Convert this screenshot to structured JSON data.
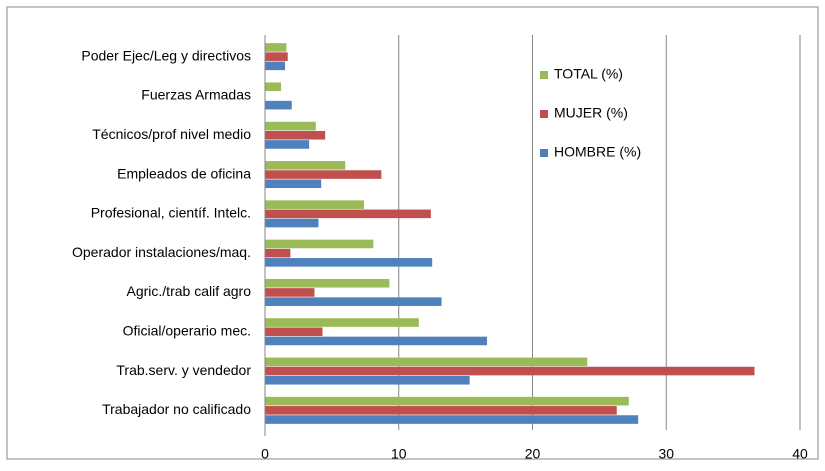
{
  "chart_data": {
    "type": "hbar",
    "categories": [
      "Poder Ejec/Leg y directivos",
      "Fuerzas Armadas",
      "Técnicos/prof nivel medio",
      "Empleados de oficina",
      "Profesional, científ. Intelc.",
      "Operador instalaciones/maq.",
      "Agric./trab calif agro",
      "Oficial/operario mec.",
      "Trab.serv. y vendedor",
      "Trabajador no calificado"
    ],
    "series": [
      {
        "name": "TOTAL (%)",
        "color": "#9bbb59",
        "values": [
          1.6,
          1.2,
          3.8,
          6.0,
          7.4,
          8.1,
          9.3,
          11.5,
          24.1,
          27.2
        ]
      },
      {
        "name": "MUJER (%)",
        "color": "#c0504d",
        "values": [
          1.7,
          0,
          4.5,
          8.7,
          12.4,
          1.9,
          3.7,
          4.3,
          36.6,
          26.3
        ]
      },
      {
        "name": "HOMBRE (%)",
        "color": "#4f81bd",
        "values": [
          1.5,
          2.0,
          3.3,
          4.2,
          4.0,
          12.5,
          13.2,
          16.6,
          15.3,
          27.9
        ]
      }
    ],
    "xlim": [
      0,
      40
    ],
    "xticks": [
      0,
      10,
      20,
      30,
      40
    ],
    "grid": true,
    "legend": "upper-right"
  }
}
